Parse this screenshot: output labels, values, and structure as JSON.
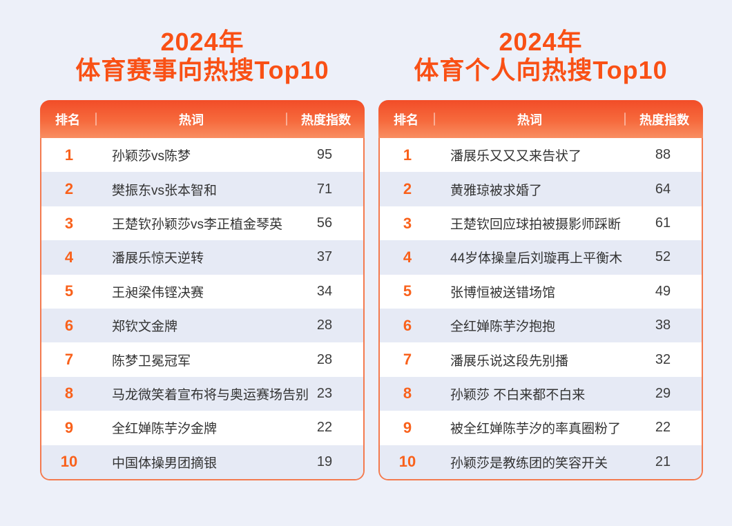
{
  "colors": {
    "page_background": "#edf0f9",
    "title_orange": "#f95015",
    "header_gradient_top": "#f24d28",
    "header_gradient_bottom": "#f98e62",
    "table_border": "#f47a4e",
    "row_stripe": "#e6eaf5",
    "rank_orange": "#f9611b",
    "body_text": "#333333"
  },
  "chart_data": [
    {
      "type": "table",
      "title_line1": "2024年",
      "title_line2": "体育赛事向热搜Top10",
      "columns": [
        "排名",
        "热词",
        "热度指数"
      ],
      "header": {
        "rank": "排名",
        "word": "热词",
        "index": "热度指数"
      },
      "rows": [
        {
          "rank": 1,
          "word": "孙颖莎vs陈梦",
          "index": 95
        },
        {
          "rank": 2,
          "word": "樊振东vs张本智和",
          "index": 71
        },
        {
          "rank": 3,
          "word": "王楚钦孙颖莎vs李正植金琴英",
          "index": 56
        },
        {
          "rank": 4,
          "word": "潘展乐惊天逆转",
          "index": 37
        },
        {
          "rank": 5,
          "word": "王昶梁伟铿决赛",
          "index": 34
        },
        {
          "rank": 6,
          "word": "郑钦文金牌",
          "index": 28
        },
        {
          "rank": 7,
          "word": "陈梦卫冕冠军",
          "index": 28
        },
        {
          "rank": 8,
          "word": "马龙微笑着宣布将与奥运赛场告别",
          "index": 23
        },
        {
          "rank": 9,
          "word": "全红婵陈芋汐金牌",
          "index": 22
        },
        {
          "rank": 10,
          "word": "中国体操男团摘银",
          "index": 19
        }
      ]
    },
    {
      "type": "table",
      "title_line1": "2024年",
      "title_line2": "体育个人向热搜Top10",
      "columns": [
        "排名",
        "热词",
        "热度指数"
      ],
      "header": {
        "rank": "排名",
        "word": "热词",
        "index": "热度指数"
      },
      "rows": [
        {
          "rank": 1,
          "word": "潘展乐又又又来告状了",
          "index": 88
        },
        {
          "rank": 2,
          "word": "黄雅琼被求婚了",
          "index": 64
        },
        {
          "rank": 3,
          "word": "王楚钦回应球拍被摄影师踩断",
          "index": 61
        },
        {
          "rank": 4,
          "word": "44岁体操皇后刘璇再上平衡木",
          "index": 52
        },
        {
          "rank": 5,
          "word": "张博恒被送错场馆",
          "index": 49
        },
        {
          "rank": 6,
          "word": "全红婵陈芋汐抱抱",
          "index": 38
        },
        {
          "rank": 7,
          "word": "潘展乐说这段先别播",
          "index": 32
        },
        {
          "rank": 8,
          "word": "孙颖莎 不白来都不白来",
          "index": 29
        },
        {
          "rank": 9,
          "word": "被全红婵陈芋汐的率真圈粉了",
          "index": 22
        },
        {
          "rank": 10,
          "word": "孙颖莎是教练团的笑容开关",
          "index": 21
        }
      ]
    }
  ]
}
